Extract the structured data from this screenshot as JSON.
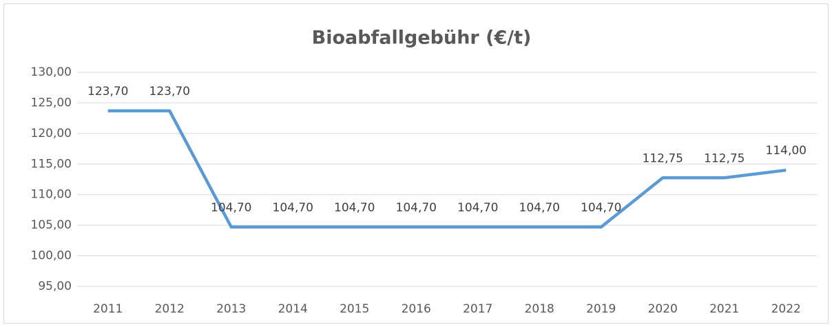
{
  "chart_data": {
    "type": "line",
    "title": "Bioabfallgebühr (€/t)",
    "categories": [
      "2011",
      "2012",
      "2013",
      "2014",
      "2015",
      "2016",
      "2017",
      "2018",
      "2019",
      "2020",
      "2021",
      "2022"
    ],
    "series": [
      {
        "name": "Bioabfallgebühr",
        "color": "#5b9bd5",
        "values": [
          123.7,
          123.7,
          104.7,
          104.7,
          104.7,
          104.7,
          104.7,
          104.7,
          104.7,
          112.75,
          112.75,
          114.0
        ],
        "value_labels": [
          "123,70",
          "123,70",
          "104,70",
          "104,70",
          "104,70",
          "104,70",
          "104,70",
          "104,70",
          "104,70",
          "112,75",
          "112,75",
          "114,00"
        ]
      }
    ],
    "ylim": [
      95,
      130
    ],
    "yticks": [
      {
        "value": 95,
        "label": "95,00"
      },
      {
        "value": 100,
        "label": "100,00"
      },
      {
        "value": 105,
        "label": "105,00"
      },
      {
        "value": 110,
        "label": "110,00"
      },
      {
        "value": 115,
        "label": "115,00"
      },
      {
        "value": 120,
        "label": "120,00"
      },
      {
        "value": 125,
        "label": "125,00"
      },
      {
        "value": 130,
        "label": "130,00"
      }
    ],
    "grid": true
  }
}
